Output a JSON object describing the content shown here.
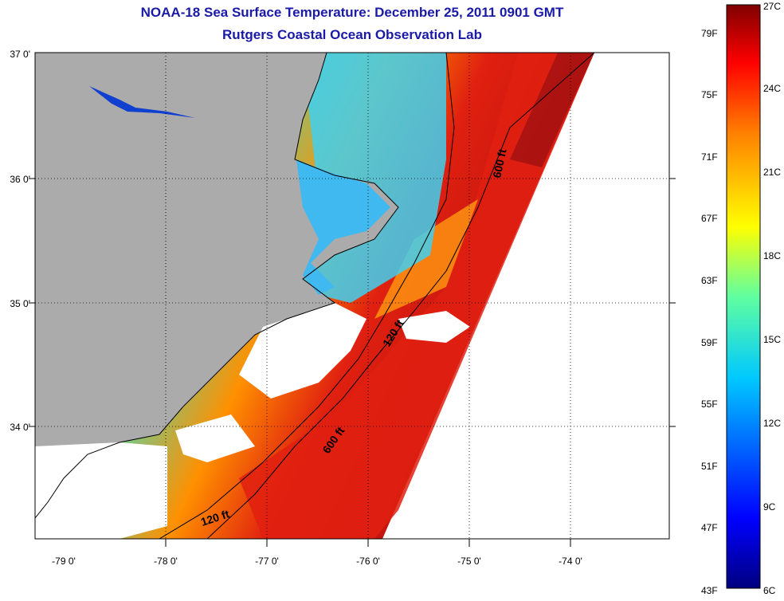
{
  "title": {
    "line1": "NOAA-18 Sea Surface Temperature:  December 25, 2011 0901 GMT",
    "line2": "Rutgers Coastal Ocean Observation Lab"
  },
  "map": {
    "lat_labels": [
      "37 0'",
      "36 0'",
      "35 0'",
      "34 0'"
    ],
    "lon_labels": [
      "-79 0'",
      "-78 0'",
      "-77 0'",
      "-76 0'",
      "-75 0'",
      "-74 0'"
    ],
    "contour_labels": [
      "600 ft",
      "120 ft",
      "600 ft",
      "120 ft"
    ],
    "colors": {
      "land": "#ababab",
      "cloud": "#ffffff",
      "warm": "#d82010",
      "cool": "#30c8e0"
    }
  },
  "colorbar": {
    "fahrenheit": [
      "79F",
      "75F",
      "71F",
      "67F",
      "63F",
      "59F",
      "55F",
      "51F",
      "47F",
      "43F"
    ],
    "celsius": [
      "27C",
      "24C",
      "21C",
      "18C",
      "15C",
      "12C",
      "9C",
      "6C"
    ]
  }
}
